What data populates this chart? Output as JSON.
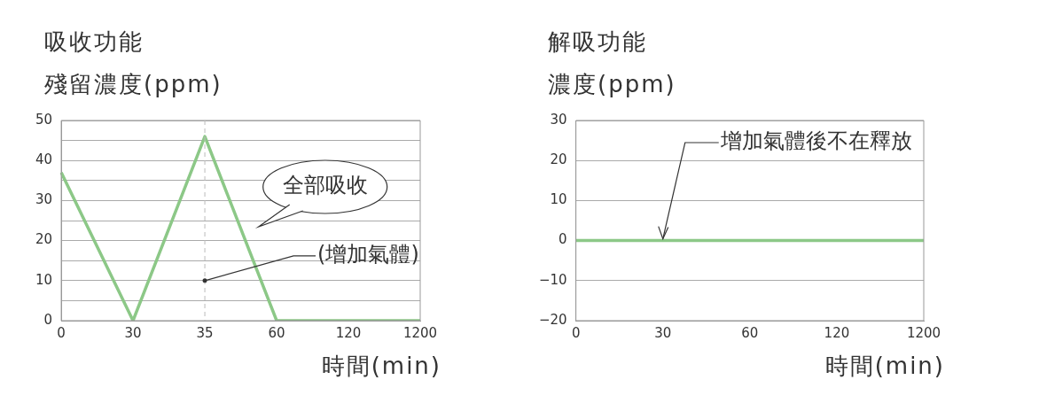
{
  "chart_data": [
    {
      "type": "line",
      "title": "吸收功能",
      "ylabel": "殘留濃度(ppm)",
      "xlabel": "時間(min)",
      "categories": [
        "0",
        "30",
        "35",
        "60",
        "120",
        "1200"
      ],
      "series": [
        {
          "color": "#8cc887",
          "values": [
            37,
            0,
            46,
            0,
            0,
            0
          ]
        }
      ],
      "ylim": [
        0,
        50
      ],
      "yticks": [
        0,
        {
          "value": 5,
          "label": null
        },
        10,
        {
          "value": 15,
          "label": null
        },
        20,
        {
          "value": 25,
          "label": null
        },
        30,
        {
          "value": 35,
          "label": null
        },
        40,
        {
          "value": 45,
          "label": null
        },
        50
      ],
      "grid": "y",
      "legend": false,
      "marker": "none",
      "ref_lines": [
        {
          "axis": "x",
          "value": "35",
          "line_style": "dashed",
          "color": "#bbbbbb"
        }
      ],
      "annotations": [
        "全部吸收",
        {
          "text": "(增加氣體)",
          "x": "35",
          "y": 10
        }
      ]
    },
    {
      "type": "line",
      "title": "解吸功能",
      "ylabel": "濃度(ppm)",
      "xlabel": "時間(min)",
      "categories": [
        "0",
        "30",
        "60",
        "120",
        "1200"
      ],
      "series": [
        {
          "color": "#8cc887",
          "values": [
            0,
            0,
            0,
            0,
            0
          ]
        }
      ],
      "ylim": [
        -20,
        30
      ],
      "yticks": [
        -20,
        -10,
        0,
        10,
        20,
        30
      ],
      "grid": "y",
      "legend": false,
      "marker": "none",
      "annotations": [
        {
          "text": "增加氣體後不在釋放",
          "x": "30",
          "y": 0
        }
      ]
    }
  ]
}
